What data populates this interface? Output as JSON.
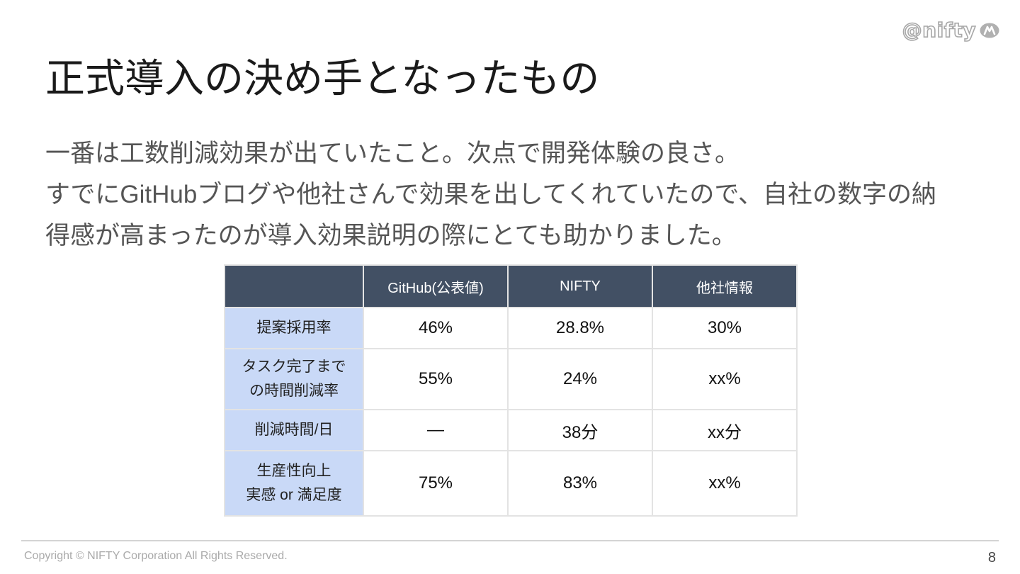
{
  "logo": {
    "text": "@nifty"
  },
  "slide": {
    "title": "正式導入の決め手となったもの",
    "body_lines": [
      "一番は工数削減効果が出ていたこと。次点で開発体験の良さ。",
      "すでにGitHubブログや他社さんで効果を出してくれていたので、自社の数字の納",
      "得感が高まったのが導入効果説明の際にとても助かりました。"
    ]
  },
  "table": {
    "headers": [
      "",
      "GitHub(公表値)",
      "NIFTY",
      "他社情報"
    ],
    "rows": [
      {
        "label_lines": [
          "提案採用率"
        ],
        "values": [
          "46%",
          "28.8%",
          "30%"
        ]
      },
      {
        "label_lines": [
          "タスク完了まで",
          "の時間削減率"
        ],
        "values": [
          "55%",
          "24%",
          "xx%"
        ]
      },
      {
        "label_lines": [
          "削減時間/日"
        ],
        "values": [
          "—",
          "38分",
          "xx分"
        ]
      },
      {
        "label_lines": [
          "生産性向上",
          "実感 or 満足度"
        ],
        "values": [
          "75%",
          "83%",
          "xx%"
        ]
      }
    ]
  },
  "footer": {
    "copyright": "Copyright © NIFTY Corporation All Rights Reserved.",
    "page_number": "8"
  },
  "colors": {
    "header_bg": "#425064",
    "label_bg": "#c9d9f7",
    "body_text": "#555555"
  }
}
